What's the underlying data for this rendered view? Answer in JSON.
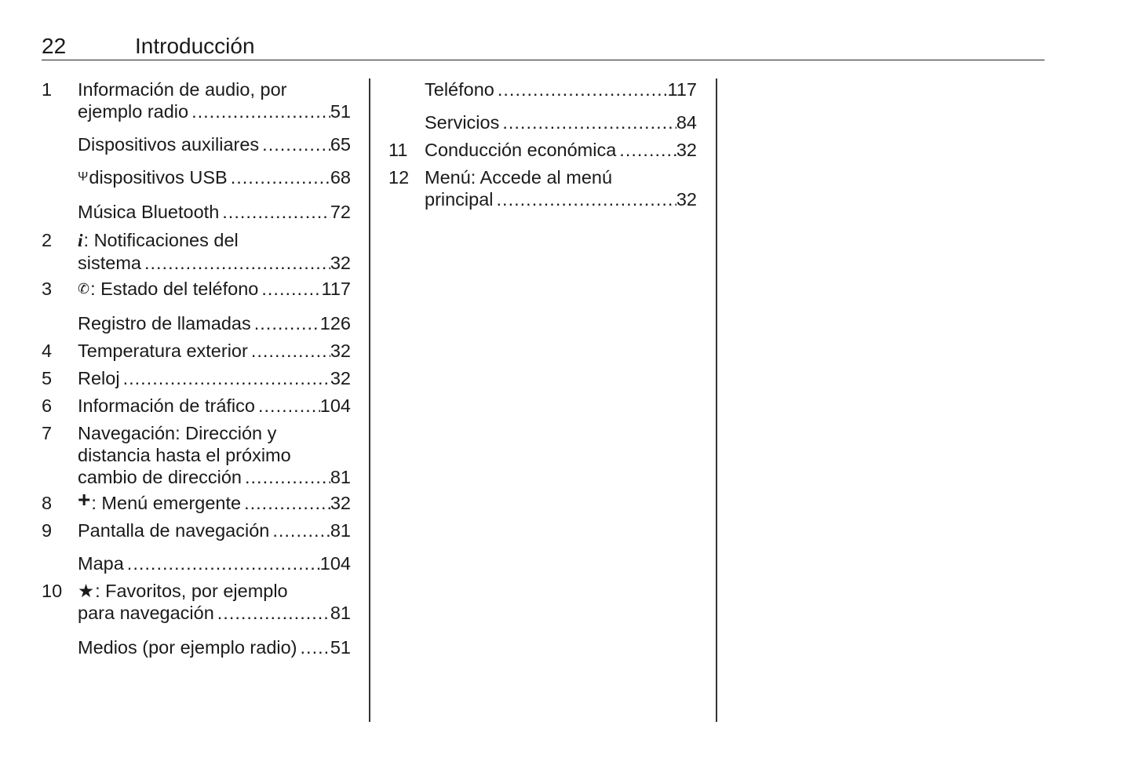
{
  "header": {
    "page_number": "22",
    "title": "Introducción"
  },
  "columns": [
    [
      {
        "num": "1",
        "lines": [
          "Información de audio, por"
        ],
        "last": "ejemplo radio",
        "page": "51"
      },
      {
        "num": "",
        "lines": [],
        "last": "Dispositivos auxiliares",
        "page": "65"
      },
      {
        "num": "",
        "icon": "usb-icon",
        "icon_glyph": "Ψ",
        "lines": [],
        "last": "dispositivos USB",
        "page": "68"
      },
      {
        "num": "",
        "lines": [],
        "last": "Música Bluetooth",
        "page": "72"
      },
      {
        "num": "2",
        "icon": "info-icon",
        "icon_glyph": "i",
        "lines": [
          ": Notificaciones del"
        ],
        "last": "sistema",
        "page": "32"
      },
      {
        "num": "3",
        "icon": "phone-icon",
        "icon_glyph": "📞",
        "lines": [],
        "last": ": Estado del teléfono",
        "page": "117"
      },
      {
        "num": "",
        "lines": [],
        "last": "Registro de llamadas",
        "page": "126"
      },
      {
        "num": "4",
        "lines": [],
        "last": "Temperatura exterior",
        "page": "32"
      },
      {
        "num": "5",
        "lines": [],
        "last": "Reloj",
        "page": "32"
      },
      {
        "num": "6",
        "lines": [],
        "last": "Información de tráfico",
        "page": "104"
      },
      {
        "num": "7",
        "lines": [
          "Navegación: Dirección y",
          "distancia hasta el próximo"
        ],
        "last": "cambio de dirección",
        "page": "81"
      },
      {
        "num": "8",
        "icon": "plus-icon",
        "icon_glyph": "+",
        "lines": [],
        "last": ": Menú emergente",
        "page": "32"
      },
      {
        "num": "9",
        "lines": [],
        "last": "Pantalla de navegación",
        "page": "81"
      },
      {
        "num": "",
        "lines": [],
        "last": "Mapa",
        "page": "104"
      },
      {
        "num": "10",
        "icon": "star-icon",
        "icon_glyph": "★",
        "lines": [
          ": Favoritos, por ejemplo"
        ],
        "last": "para navegación",
        "page": "81"
      },
      {
        "num": "",
        "lines": [],
        "last": "Medios (por ejemplo radio)",
        "page": "51"
      }
    ],
    [
      {
        "num": "",
        "lines": [],
        "last": "Teléfono",
        "page": "117"
      },
      {
        "num": "",
        "lines": [],
        "last": "Servicios",
        "page": "84"
      },
      {
        "num": "11",
        "lines": [],
        "last": "Conducción económica",
        "page": "32"
      },
      {
        "num": "12",
        "lines": [
          "Menú: Accede al menú"
        ],
        "last": "principal",
        "page": "32"
      }
    ]
  ]
}
